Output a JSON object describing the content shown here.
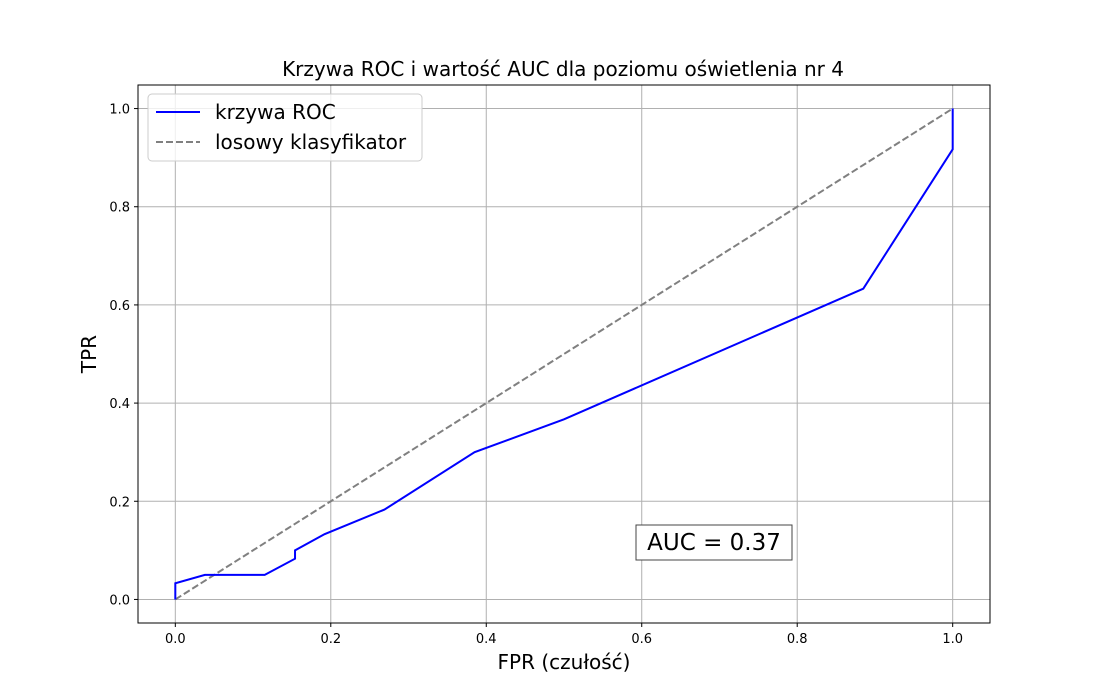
{
  "chart_data": {
    "type": "line",
    "title": "Krzywa ROC i wartość AUC dla poziomu oświetlenia nr 4",
    "xlabel": "FPR (czułość)",
    "ylabel": "TPR",
    "xlim": [
      -0.048,
      1.048
    ],
    "ylim": [
      -0.048,
      1.048
    ],
    "xticks": [
      0.0,
      0.2,
      0.4,
      0.6,
      0.8,
      1.0
    ],
    "xtick_labels": [
      "0.0",
      "0.2",
      "0.4",
      "0.6",
      "0.8",
      "1.0"
    ],
    "yticks": [
      0.0,
      0.2,
      0.4,
      0.6,
      0.8,
      1.0
    ],
    "ytick_labels": [
      "0.0",
      "0.2",
      "0.4",
      "0.6",
      "0.8",
      "1.0"
    ],
    "grid": true,
    "legend_position": "upper-left",
    "series": [
      {
        "name": "krzywa ROC",
        "color": "#0000ff",
        "style": "solid",
        "x": [
          0.0,
          0.0,
          0.038,
          0.115,
          0.154,
          0.154,
          0.192,
          0.269,
          0.385,
          0.5,
          0.885,
          1.0,
          1.0
        ],
        "y": [
          0.0,
          0.033,
          0.05,
          0.05,
          0.083,
          0.1,
          0.133,
          0.183,
          0.3,
          0.367,
          0.633,
          0.917,
          1.0
        ]
      },
      {
        "name": "losowy klasyfikator",
        "color": "#808080",
        "style": "dashed",
        "x": [
          0.0,
          1.0
        ],
        "y": [
          0.0,
          1.0
        ]
      }
    ],
    "annotation": {
      "text": "AUC = 0.37",
      "x": 0.6,
      "y": 0.11
    }
  }
}
